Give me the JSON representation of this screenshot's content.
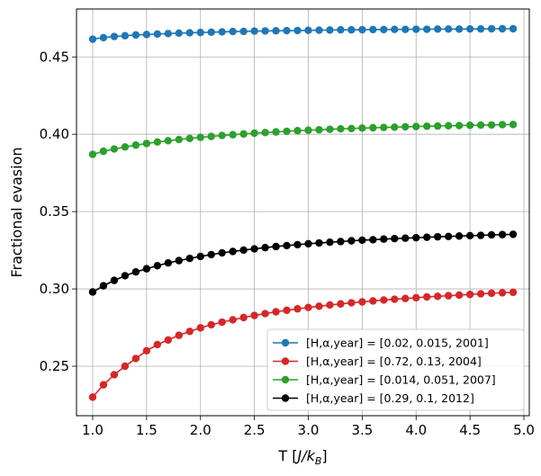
{
  "chart_data": {
    "type": "line",
    "xlabel": "T [J/k_B]",
    "xlabel_main": "T [",
    "xlabel_italic": "J/k",
    "xlabel_sub": "B",
    "xlabel_end": "]",
    "ylabel": "Fractional evasion",
    "xlim": [
      0.85,
      5.05
    ],
    "ylim": [
      0.218,
      0.481
    ],
    "xticks": [
      1.0,
      1.5,
      2.0,
      2.5,
      3.0,
      3.5,
      4.0,
      4.5,
      5.0
    ],
    "xtick_labels": [
      "1.0",
      "1.5",
      "2.0",
      "2.5",
      "3.0",
      "3.5",
      "4.0",
      "4.5",
      "5.0"
    ],
    "yticks": [
      0.25,
      0.3,
      0.35,
      0.4,
      0.45
    ],
    "ytick_labels": [
      "0.25",
      "0.30",
      "0.35",
      "0.40",
      "0.45"
    ],
    "grid": true,
    "legend_position": "lower-right",
    "x": [
      1.0,
      1.1,
      1.2,
      1.3,
      1.4,
      1.5,
      1.6,
      1.7,
      1.8,
      1.9,
      2.0,
      2.1,
      2.2,
      2.3,
      2.4,
      2.5,
      2.6,
      2.7,
      2.8,
      2.9,
      3.0,
      3.1,
      3.2,
      3.3,
      3.4,
      3.5,
      3.6,
      3.7,
      3.8,
      3.9,
      4.0,
      4.1,
      4.2,
      4.3,
      4.4,
      4.5,
      4.6,
      4.7,
      4.8,
      4.9
    ],
    "series": [
      {
        "name": "[H,α,year] = [0.02, 0.015, 2001]",
        "color": "#1f77b4",
        "values": [
          0.4615,
          0.4625,
          0.4632,
          0.4637,
          0.4642,
          0.4645,
          0.4648,
          0.4651,
          0.4654,
          0.4656,
          0.4658,
          0.466,
          0.4662,
          0.4664,
          0.4665,
          0.4667,
          0.4668,
          0.4669,
          0.467,
          0.4671,
          0.4672,
          0.4673,
          0.4674,
          0.4675,
          0.4675,
          0.4676,
          0.4677,
          0.4677,
          0.4678,
          0.4678,
          0.4679,
          0.4679,
          0.468,
          0.468,
          0.468,
          0.4681,
          0.4681,
          0.4682,
          0.4682,
          0.4682
        ]
      },
      {
        "name": "[H,α,year] = [0.72, 0.13, 2004]",
        "color": "#d62728",
        "values": [
          0.23,
          0.238,
          0.2445,
          0.25,
          0.255,
          0.26,
          0.264,
          0.267,
          0.27,
          0.2725,
          0.2748,
          0.2768,
          0.2785,
          0.28,
          0.2815,
          0.2828,
          0.284,
          0.2852,
          0.2862,
          0.2871,
          0.288,
          0.2888,
          0.2896,
          0.2903,
          0.291,
          0.2916,
          0.2922,
          0.2928,
          0.2933,
          0.2938,
          0.2943,
          0.2948,
          0.2952,
          0.2956,
          0.296,
          0.2964,
          0.2968,
          0.2972,
          0.2975,
          0.2978
        ]
      },
      {
        "name": "[H,α,year] = [0.014, 0.051, 2007]",
        "color": "#2ca02c",
        "values": [
          0.387,
          0.389,
          0.3905,
          0.3918,
          0.393,
          0.394,
          0.395,
          0.3958,
          0.3966,
          0.3973,
          0.398,
          0.3986,
          0.3992,
          0.3997,
          0.4002,
          0.4007,
          0.4011,
          0.4015,
          0.4019,
          0.4023,
          0.4026,
          0.4029,
          0.4032,
          0.4035,
          0.4037,
          0.404,
          0.4042,
          0.4044,
          0.4046,
          0.4048,
          0.405,
          0.4052,
          0.4053,
          0.4055,
          0.4056,
          0.4058,
          0.4059,
          0.406,
          0.4062,
          0.4063
        ]
      },
      {
        "name": "[H,α,year] = [0.29, 0.1, 2012]",
        "color": "#000000",
        "values": [
          0.298,
          0.302,
          0.3055,
          0.3085,
          0.311,
          0.313,
          0.315,
          0.3168,
          0.3183,
          0.3197,
          0.321,
          0.3222,
          0.3233,
          0.3242,
          0.3251,
          0.3259,
          0.3267,
          0.3274,
          0.328,
          0.3286,
          0.3292,
          0.3297,
          0.3302,
          0.3306,
          0.3311,
          0.3315,
          0.3318,
          0.3322,
          0.3325,
          0.3328,
          0.3331,
          0.3334,
          0.3337,
          0.3339,
          0.3342,
          0.3344,
          0.3346,
          0.3349,
          0.3351,
          0.3353
        ]
      }
    ]
  }
}
